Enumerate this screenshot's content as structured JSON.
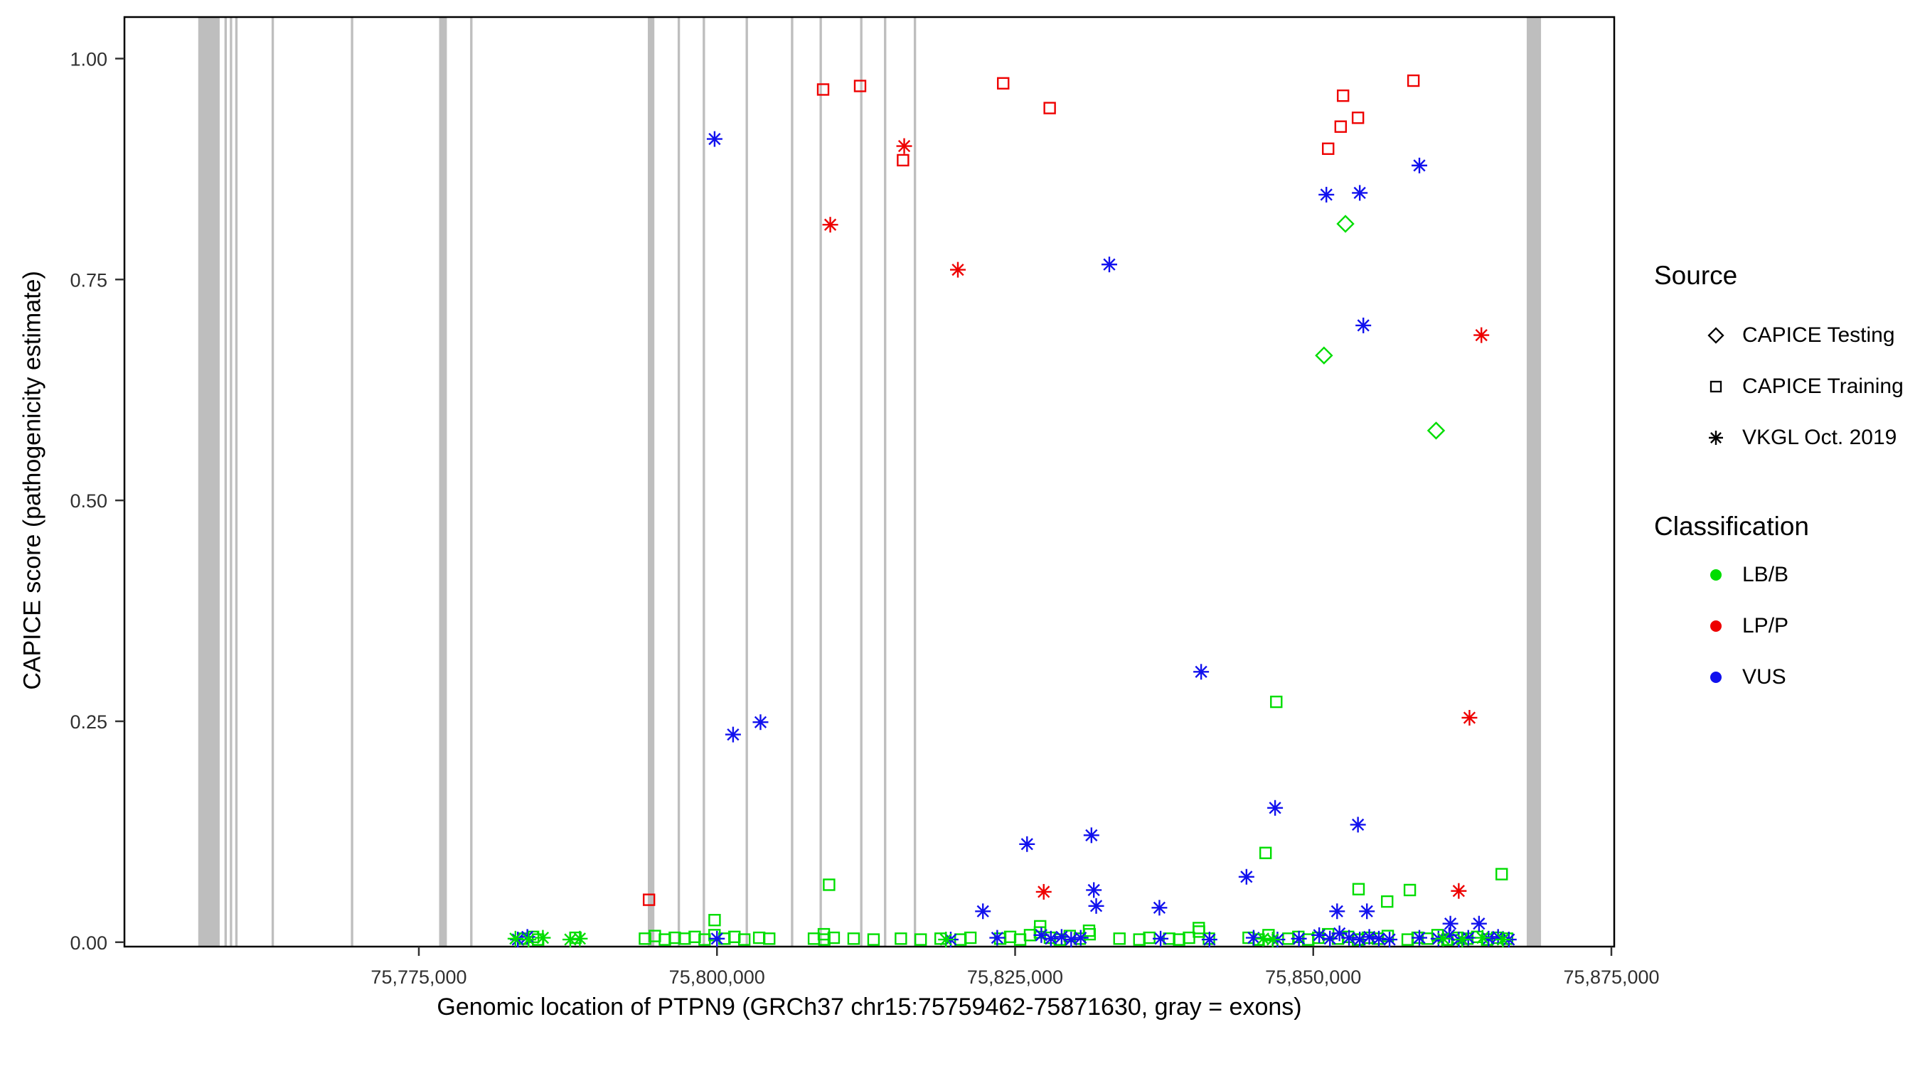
{
  "legend": {
    "source": {
      "title": "Source",
      "items": [
        {
          "label": "CAPICE Testing",
          "marker": "diamond"
        },
        {
          "label": "CAPICE Training",
          "marker": "square"
        },
        {
          "label": "VKGL Oct. 2019",
          "marker": "asterisk"
        }
      ]
    },
    "classification": {
      "title": "Classification",
      "items": [
        {
          "label": "LB/B",
          "color_key": "LB/B"
        },
        {
          "label": "LP/P",
          "color_key": "LP/P"
        },
        {
          "label": "VUS",
          "color_key": "VUS"
        }
      ]
    }
  },
  "chart_data": {
    "type": "scatter",
    "title": "",
    "xlabel": "Genomic location of PTPN9 (GRCh37 chr15:75759462-75871630, gray = exons)",
    "ylabel": "CAPICE score (pathogenicity estimate)",
    "xlim": [
      75750313,
      75875238
    ],
    "ylim": [
      -0.005,
      1.047
    ],
    "grid": false,
    "legend_position": "right",
    "x_ticks": [
      {
        "value": 75775000,
        "label": "75,775,000"
      },
      {
        "value": 75800000,
        "label": "75,800,000"
      },
      {
        "value": 75825000,
        "label": "75,825,000"
      },
      {
        "value": 75850000,
        "label": "75,850,000"
      },
      {
        "value": 75875000,
        "label": "75,875,000"
      }
    ],
    "y_ticks": [
      {
        "value": 0.0,
        "label": "0.00"
      },
      {
        "value": 0.25,
        "label": "0.25"
      },
      {
        "value": 0.5,
        "label": "0.50"
      },
      {
        "value": 0.75,
        "label": "0.75"
      },
      {
        "value": 1.0,
        "label": "1.00"
      }
    ],
    "colors": {
      "LB/B": "#00DD00",
      "LP/P": "#EE0000",
      "VUS": "#1111EE",
      "exon": "#BEBEBE"
    },
    "exons": [
      [
        75756500,
        75758300
      ],
      [
        75758700,
        75758900
      ],
      [
        75759150,
        75759350
      ],
      [
        75759600,
        75759800
      ],
      [
        75762650,
        75762850
      ],
      [
        75769300,
        75769500
      ],
      [
        75776700,
        75777350
      ],
      [
        75779300,
        75779500
      ],
      [
        75794200,
        75794750
      ],
      [
        75796700,
        75796900
      ],
      [
        75798800,
        75799000
      ],
      [
        75802400,
        75802600
      ],
      [
        75806200,
        75806400
      ],
      [
        75808600,
        75808800
      ],
      [
        75812000,
        75812200
      ],
      [
        75814000,
        75814200
      ],
      [
        75816500,
        75816700
      ],
      [
        75867900,
        75869100
      ]
    ],
    "series": [
      {
        "name": "LB/B - CAPICE Testing",
        "source": "CAPICE Testing",
        "classification": "LB/B",
        "marker": "diamond",
        "points": [
          [
            75852700,
            0.813
          ],
          [
            75850900,
            0.664
          ],
          [
            75860300,
            0.579
          ]
        ]
      },
      {
        "name": "LB/B - CAPICE Training",
        "source": "CAPICE Training",
        "classification": "LB/B",
        "marker": "square",
        "points": [
          [
            75809400,
            0.065
          ],
          [
            75846900,
            0.272
          ],
          [
            75846000,
            0.101
          ],
          [
            75865800,
            0.077
          ],
          [
            75853800,
            0.06
          ],
          [
            75858100,
            0.059
          ],
          [
            75856200,
            0.046
          ],
          [
            75799800,
            0.025
          ],
          [
            75827100,
            0.018
          ],
          [
            75840400,
            0.016
          ],
          [
            75831200,
            0.013
          ],
          [
            75783750,
            0.004
          ],
          [
            75784580,
            0.006
          ],
          [
            75785000,
            0.003
          ],
          [
            75788130,
            0.005
          ],
          [
            75793960,
            0.004
          ],
          [
            75794790,
            0.007
          ],
          [
            75795630,
            0.003
          ],
          [
            75796460,
            0.005
          ],
          [
            75797290,
            0.004
          ],
          [
            75798130,
            0.006
          ],
          [
            75798960,
            0.003
          ],
          [
            75799790,
            0.008
          ],
          [
            75800630,
            0.004
          ],
          [
            75801460,
            0.006
          ],
          [
            75802290,
            0.003
          ],
          [
            75803540,
            0.005
          ],
          [
            75804380,
            0.004
          ],
          [
            75808130,
            0.004
          ],
          [
            75808960,
            0.009
          ],
          [
            75809000,
            0.003
          ],
          [
            75809790,
            0.005
          ],
          [
            75811460,
            0.004
          ],
          [
            75813130,
            0.003
          ],
          [
            75815420,
            0.004
          ],
          [
            75817080,
            0.003
          ],
          [
            75818750,
            0.004
          ],
          [
            75820420,
            0.003
          ],
          [
            75821250,
            0.005
          ],
          [
            75823750,
            0.004
          ],
          [
            75824580,
            0.006
          ],
          [
            75825420,
            0.003
          ],
          [
            75826250,
            0.008
          ],
          [
            75827080,
            0.011
          ],
          [
            75827920,
            0.005
          ],
          [
            75828750,
            0.003
          ],
          [
            75829580,
            0.007
          ],
          [
            75830420,
            0.004
          ],
          [
            75831250,
            0.009
          ],
          [
            75833750,
            0.004
          ],
          [
            75835420,
            0.003
          ],
          [
            75836250,
            0.005
          ],
          [
            75837920,
            0.004
          ],
          [
            75838750,
            0.003
          ],
          [
            75839580,
            0.005
          ],
          [
            75840420,
            0.012
          ],
          [
            75841250,
            0.004
          ],
          [
            75844580,
            0.005
          ],
          [
            75845420,
            0.003
          ],
          [
            75846250,
            0.008
          ],
          [
            75847920,
            0.004
          ],
          [
            75848750,
            0.006
          ],
          [
            75849580,
            0.003
          ],
          [
            75850420,
            0.005
          ],
          [
            75851250,
            0.009
          ],
          [
            75852080,
            0.004
          ],
          [
            75852920,
            0.006
          ],
          [
            75853750,
            0.003
          ],
          [
            75854580,
            0.005
          ],
          [
            75855420,
            0.004
          ],
          [
            75856250,
            0.007
          ],
          [
            75857920,
            0.003
          ],
          [
            75858750,
            0.005
          ],
          [
            75859580,
            0.004
          ],
          [
            75860420,
            0.008
          ],
          [
            75861250,
            0.003
          ],
          [
            75862080,
            0.005
          ],
          [
            75862920,
            0.004
          ],
          [
            75863750,
            0.006
          ],
          [
            75864580,
            0.003
          ],
          [
            75865420,
            0.005
          ],
          [
            75866250,
            0.004
          ]
        ]
      },
      {
        "name": "LP/P - CAPICE Training",
        "source": "CAPICE Training",
        "classification": "LP/P",
        "marker": "square",
        "points": [
          [
            75808900,
            0.965
          ],
          [
            75812000,
            0.969
          ],
          [
            75815600,
            0.885
          ],
          [
            75824000,
            0.972
          ],
          [
            75827900,
            0.944
          ],
          [
            75851250,
            0.898
          ],
          [
            75852300,
            0.923
          ],
          [
            75852500,
            0.958
          ],
          [
            75853750,
            0.933
          ],
          [
            75858400,
            0.975
          ],
          [
            75794300,
            0.048
          ]
        ]
      },
      {
        "name": "LP/P - VKGL Oct. 2019",
        "source": "VKGL Oct. 2019",
        "classification": "LP/P",
        "marker": "asterisk",
        "points": [
          [
            75809500,
            0.812
          ],
          [
            75815700,
            0.901
          ],
          [
            75820200,
            0.761
          ],
          [
            75864100,
            0.687
          ],
          [
            75863100,
            0.254
          ],
          [
            75827400,
            0.057
          ],
          [
            75862200,
            0.058
          ]
        ]
      },
      {
        "name": "VUS - VKGL Oct. 2019",
        "source": "VKGL Oct. 2019",
        "classification": "VUS",
        "marker": "asterisk",
        "points": [
          [
            75799800,
            0.909
          ],
          [
            75801350,
            0.235
          ],
          [
            75803650,
            0.249
          ],
          [
            75832900,
            0.767
          ],
          [
            75858900,
            0.879
          ],
          [
            75851100,
            0.846
          ],
          [
            75853900,
            0.848
          ],
          [
            75854200,
            0.698
          ],
          [
            75840600,
            0.306
          ],
          [
            75846800,
            0.152
          ],
          [
            75853750,
            0.133
          ],
          [
            75826000,
            0.111
          ],
          [
            75831400,
            0.121
          ],
          [
            75844400,
            0.074
          ],
          [
            75831600,
            0.059
          ],
          [
            75831800,
            0.041
          ],
          [
            75837100,
            0.039
          ],
          [
            75822300,
            0.035
          ],
          [
            75852000,
            0.035
          ],
          [
            75854500,
            0.035
          ],
          [
            75861500,
            0.021
          ],
          [
            75863900,
            0.021
          ],
          [
            75783300,
            0.003
          ],
          [
            75784100,
            0.006
          ],
          [
            75800000,
            0.004
          ],
          [
            75819600,
            0.003
          ],
          [
            75823500,
            0.005
          ],
          [
            75827200,
            0.008
          ],
          [
            75828000,
            0.004
          ],
          [
            75828900,
            0.006
          ],
          [
            75829700,
            0.003
          ],
          [
            75830500,
            0.005
          ],
          [
            75837200,
            0.004
          ],
          [
            75841300,
            0.003
          ],
          [
            75845000,
            0.005
          ],
          [
            75847000,
            0.003
          ],
          [
            75848800,
            0.004
          ],
          [
            75850500,
            0.008
          ],
          [
            75851400,
            0.004
          ],
          [
            75852200,
            0.01
          ],
          [
            75853000,
            0.005
          ],
          [
            75853900,
            0.003
          ],
          [
            75854700,
            0.006
          ],
          [
            75855500,
            0.004
          ],
          [
            75856400,
            0.003
          ],
          [
            75858900,
            0.005
          ],
          [
            75860500,
            0.004
          ],
          [
            75861400,
            0.008
          ],
          [
            75862200,
            0.003
          ],
          [
            75863000,
            0.005
          ],
          [
            75864700,
            0.004
          ],
          [
            75865500,
            0.006
          ],
          [
            75866400,
            0.003
          ]
        ]
      },
      {
        "name": "LB/B - VKGL Oct. 2019",
        "source": "VKGL Oct. 2019",
        "classification": "LB/B",
        "marker": "asterisk",
        "points": [
          [
            75783100,
            0.004
          ],
          [
            75784200,
            0.003
          ],
          [
            75785400,
            0.005
          ],
          [
            75787700,
            0.003
          ],
          [
            75788500,
            0.004
          ],
          [
            75819200,
            0.003
          ],
          [
            75845800,
            0.004
          ],
          [
            75846600,
            0.003
          ],
          [
            75860900,
            0.004
          ],
          [
            75862500,
            0.003
          ],
          [
            75864200,
            0.005
          ],
          [
            75865900,
            0.003
          ]
        ]
      }
    ]
  }
}
